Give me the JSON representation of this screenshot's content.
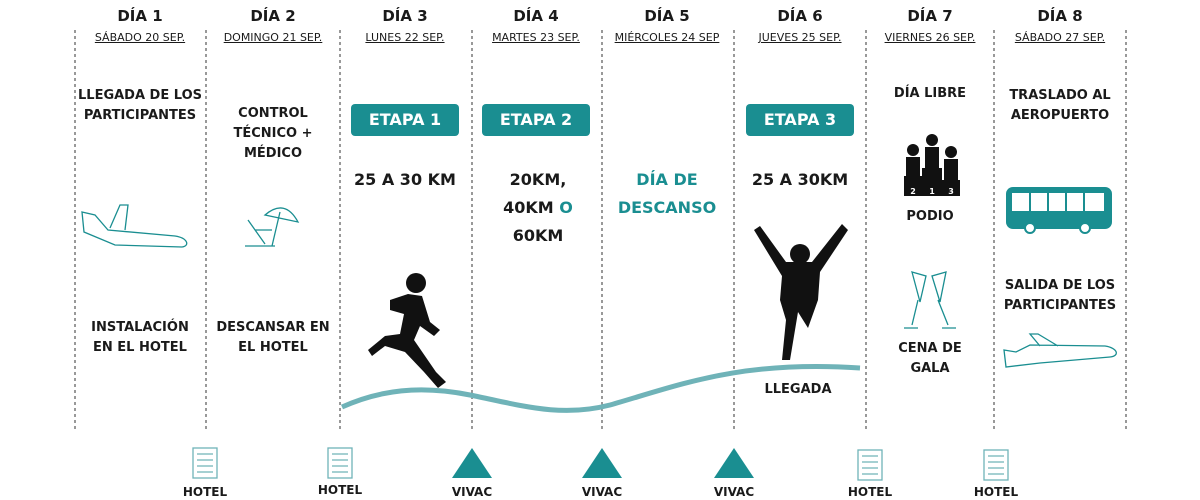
{
  "days": [
    {
      "title": "DÍA 1",
      "date": "SÁBADO 20 SEP.",
      "top": "LLEGADA DE LOS PARTICIPANTES",
      "bottom": "INSTALACIÓN EN EL HOTEL"
    },
    {
      "title": "DÍA 2",
      "date": "DOMINGO 21 SEP.",
      "top": "CONTROL TÉCNICO + MÉDICO",
      "bottom": "DESCANSAR EN EL HOTEL"
    },
    {
      "title": "DÍA 3",
      "date": "LUNES 22 SEP.",
      "stage": "ETAPA 1",
      "distance": "25 A 30 KM"
    },
    {
      "title": "DÍA 4",
      "date": "MARTES 23 SEP.",
      "stage": "ETAPA 2",
      "distance_line1": "20KM,",
      "distance_line2": "40KM",
      "distance_connector": "O",
      "distance_line3": "60KM"
    },
    {
      "title": "DÍA 5",
      "date": "MIÉRCOLES 24 SEP",
      "rest": "DÍA DE DESCANSO"
    },
    {
      "title": "DÍA 6",
      "date": "JUEVES 25 SEP.",
      "stage": "ETAPA 3",
      "distance": "25 A 30KM",
      "finish": "LLEGADA"
    },
    {
      "title": "DÍA 7",
      "date": "VIERNES 26 SEP.",
      "top": "DÍA LIBRE",
      "podium_places": [
        "2",
        "1",
        "3"
      ],
      "middle": "PODIO",
      "bottom": "CENA DE GALA"
    },
    {
      "title": "DÍA 8",
      "date": "SÁBADO 27 SEP.",
      "top": "TRASLADO AL AEROPUERTO",
      "bottom": "SALIDA DE LOS PARTICIPANTES"
    }
  ],
  "lodging": [
    "HOTEL",
    "HOTEL",
    "VIVAC",
    "VIVAC",
    "VIVAC",
    "HOTEL",
    "HOTEL"
  ]
}
